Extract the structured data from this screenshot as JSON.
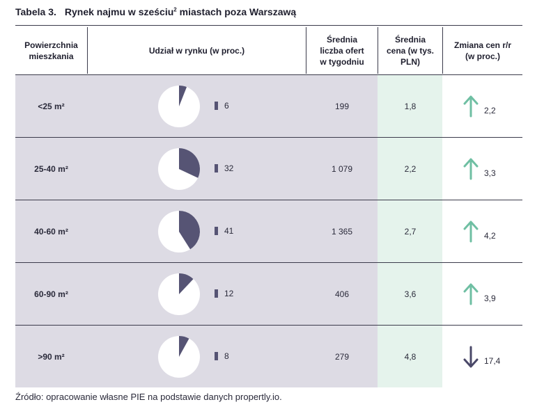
{
  "title": {
    "number": "Tabela 3.",
    "text": "Rynek najmu w sześciu",
    "sup": "2",
    "text_end": " miastach poza Warszawą"
  },
  "headers": {
    "size": [
      "Powierzchnia",
      "mieszkania"
    ],
    "share": "Udział w rynku (w proc.)",
    "offers": [
      "Średnia",
      "liczba ofert",
      "w tygodniu"
    ],
    "price": [
      "Średnia",
      "cena (w tys.",
      "PLN)"
    ],
    "change": [
      "Zmiana cen r/r",
      "(w proc.)"
    ]
  },
  "rows": [
    {
      "size": "<25 m²",
      "share": "6",
      "share_value": 6,
      "offers": "199",
      "price": "1,8",
      "direction": "up",
      "change": "2,2"
    },
    {
      "size": "25-40 m²",
      "share": "32",
      "share_value": 32,
      "offers": "1 079",
      "price": "2,2",
      "direction": "up",
      "change": "3,3"
    },
    {
      "size": "40-60 m²",
      "share": "41",
      "share_value": 41,
      "offers": "1 365",
      "price": "2,7",
      "direction": "up",
      "change": "4,2"
    },
    {
      "size": "60-90 m²",
      "share": "12",
      "share_value": 12,
      "offers": "406",
      "price": "3,6",
      "direction": "up",
      "change": "3,9"
    },
    {
      "size": ">90 m²",
      "share": "8",
      "share_value": 8,
      "offers": "279",
      "price": "4,8",
      "direction": "down",
      "change": "17,4"
    }
  ],
  "source": "Źródło: opracowanie własne PIE na podstawie danych propertly.io.",
  "colors": {
    "row_bg": "#dddbe4",
    "price_col_bg": "#e5f3ec",
    "pie_fill": "#565474",
    "arrow_up": "#6fbfa3",
    "arrow_down": "#4a4868"
  }
}
